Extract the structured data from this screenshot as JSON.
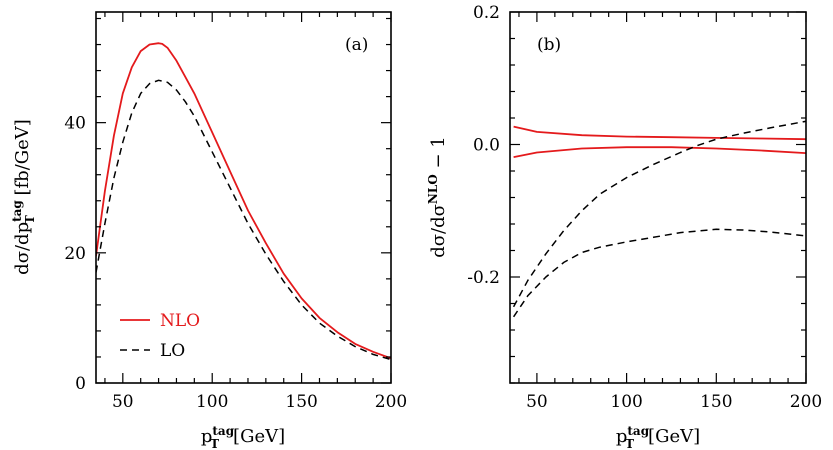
{
  "colors": {
    "nlo": "#e41a1c",
    "lo": "#000000",
    "axes": "#000000"
  },
  "chart_data": [
    {
      "type": "line",
      "panel_label": "(a)",
      "xlabel": {
        "main": "p",
        "sub": "T",
        "sup": "tag",
        "rest": "[GeV]"
      },
      "ylabel": {
        "pre": "dσ/dp",
        "sub": "T",
        "sup": "tag",
        "rest": " [fb/GeV]"
      },
      "xlim": [
        35,
        200
      ],
      "ylim": [
        0,
        57
      ],
      "xticks": [
        50,
        100,
        150,
        200
      ],
      "yticks": [
        0,
        20,
        40
      ],
      "grid": false,
      "legend_position": "bottom-left",
      "legend": [
        {
          "label": "NLO",
          "style": "solid",
          "color_key": "nlo"
        },
        {
          "label": "LO",
          "style": "dashed",
          "color_key": "lo"
        }
      ],
      "series": [
        {
          "name": "NLO",
          "style": "solid",
          "color_key": "nlo",
          "x": [
            35,
            40,
            45,
            50,
            55,
            60,
            65,
            70,
            72,
            75,
            80,
            85,
            90,
            100,
            110,
            120,
            130,
            140,
            150,
            160,
            170,
            180,
            190,
            200
          ],
          "y": [
            19.5,
            29.5,
            38,
            44.5,
            48.5,
            51,
            52,
            52.2,
            52.1,
            51.5,
            49.5,
            47,
            44.5,
            38.5,
            32.5,
            26.5,
            21.5,
            16.8,
            13,
            10,
            7.8,
            6,
            4.8,
            3.8
          ]
        },
        {
          "name": "LO",
          "style": "dashed",
          "color_key": "lo",
          "x": [
            35,
            40,
            45,
            50,
            55,
            60,
            65,
            70,
            75,
            80,
            85,
            90,
            100,
            110,
            120,
            130,
            140,
            150,
            160,
            170,
            180,
            190,
            200
          ],
          "y": [
            17,
            24.5,
            31.5,
            37,
            41.5,
            44.5,
            46,
            46.5,
            46.2,
            45,
            43.2,
            41,
            35.5,
            30,
            24.5,
            19.8,
            15.6,
            12,
            9.2,
            7.2,
            5.6,
            4.4,
            3.6
          ]
        }
      ]
    },
    {
      "type": "line",
      "panel_label": "(b)",
      "xlabel": {
        "main": "p",
        "sub": "T",
        "sup": "tag",
        "rest": "[GeV]"
      },
      "ylabel": {
        "pre": "dσ/dσ",
        "sup": "NLO",
        "rest": " − 1"
      },
      "xlim": [
        35,
        200
      ],
      "ylim": [
        -0.36,
        0.2
      ],
      "xticks": [
        50,
        100,
        150,
        200
      ],
      "yticks": [
        -0.2,
        0.0,
        0.2
      ],
      "ytick_labels": [
        "-0.2",
        "0.0",
        "0.2"
      ],
      "grid": false,
      "series": [
        {
          "name": "NLO upper",
          "style": "solid",
          "color_key": "nlo",
          "x": [
            37,
            50,
            75,
            100,
            125,
            150,
            175,
            200
          ],
          "y": [
            0.027,
            0.019,
            0.014,
            0.012,
            0.011,
            0.01,
            0.009,
            0.008
          ]
        },
        {
          "name": "NLO lower",
          "style": "solid",
          "color_key": "nlo",
          "x": [
            37,
            50,
            75,
            100,
            125,
            150,
            175,
            200
          ],
          "y": [
            -0.019,
            -0.012,
            -0.006,
            -0.004,
            -0.004,
            -0.006,
            -0.009,
            -0.013
          ]
        },
        {
          "name": "LO upper",
          "style": "dashed",
          "color_key": "lo",
          "x": [
            37,
            45,
            55,
            65,
            75,
            85,
            100,
            115,
            130,
            140,
            150,
            165,
            180,
            200
          ],
          "y": [
            -0.245,
            -0.205,
            -0.165,
            -0.13,
            -0.1,
            -0.075,
            -0.05,
            -0.03,
            -0.012,
            -0.001,
            0.008,
            0.017,
            0.025,
            0.035
          ]
        },
        {
          "name": "LO lower",
          "style": "dashed",
          "color_key": "lo",
          "x": [
            37,
            45,
            55,
            65,
            75,
            85,
            100,
            115,
            130,
            150,
            165,
            180,
            200
          ],
          "y": [
            -0.26,
            -0.228,
            -0.2,
            -0.178,
            -0.163,
            -0.155,
            -0.147,
            -0.14,
            -0.133,
            -0.128,
            -0.129,
            -0.132,
            -0.138
          ]
        }
      ]
    }
  ]
}
